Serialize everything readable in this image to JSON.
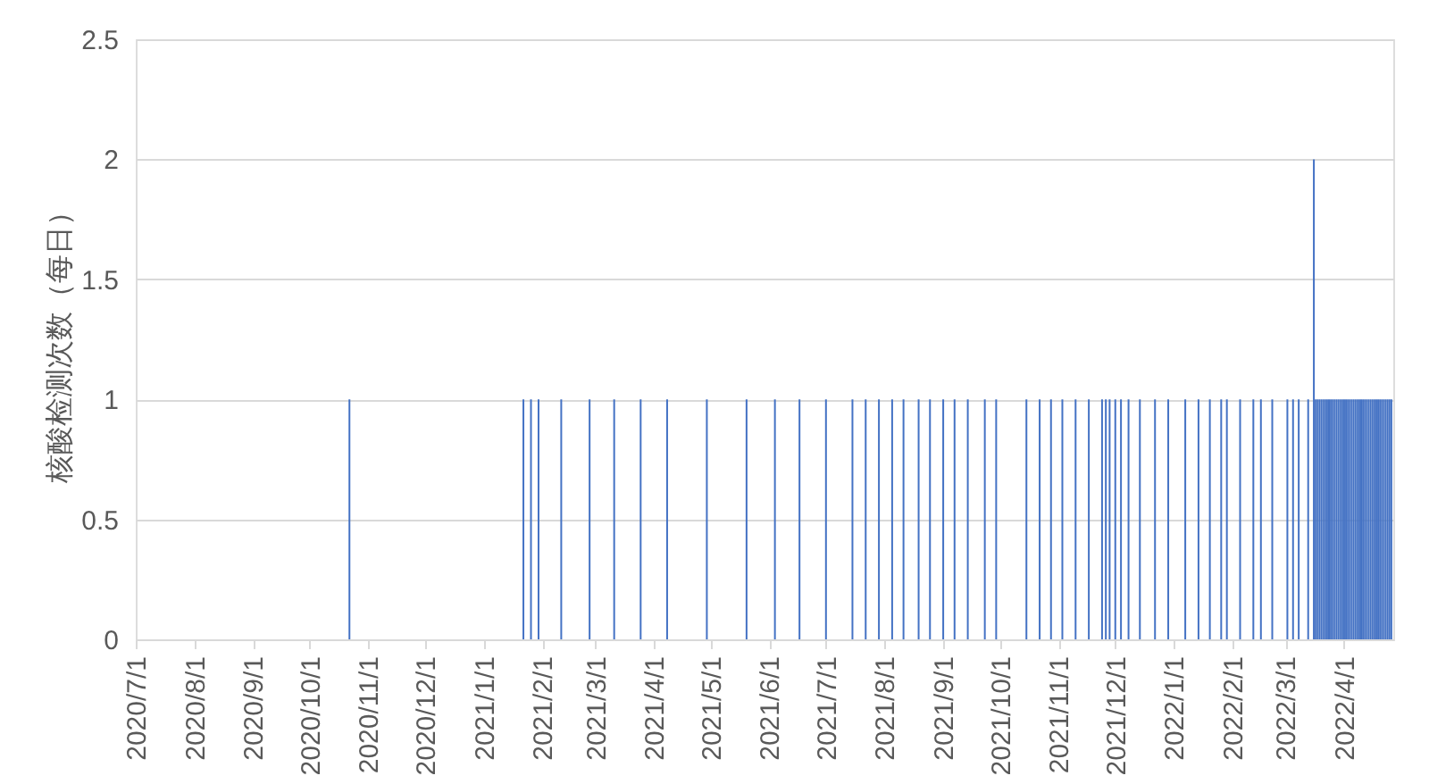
{
  "chart_data": {
    "type": "bar",
    "ylabel": "核酸检测次数（每日）",
    "x": [
      "2020-10-22",
      "2021-01-22",
      "2021-01-26",
      "2021-01-30",
      "2021-02-11",
      "2021-02-26",
      "2021-03-11",
      "2021-03-25",
      "2021-04-08",
      "2021-04-29",
      "2021-05-20",
      "2021-06-04",
      "2021-06-17",
      "2021-07-01",
      "2021-07-15",
      "2021-07-22",
      "2021-07-29",
      "2021-08-05",
      "2021-08-11",
      "2021-08-19",
      "2021-08-25",
      "2021-09-01",
      "2021-09-07",
      "2021-09-14",
      "2021-09-23",
      "2021-09-29",
      "2021-10-15",
      "2021-10-22",
      "2021-10-28",
      "2021-11-03",
      "2021-11-10",
      "2021-11-17",
      "2021-11-24",
      "2021-11-26",
      "2021-11-28",
      "2021-12-01",
      "2021-12-04",
      "2021-12-08",
      "2021-12-14",
      "2021-12-22",
      "2021-12-29",
      "2022-01-07",
      "2022-01-14",
      "2022-01-20",
      "2022-01-26",
      "2022-01-29",
      "2022-02-05",
      "2022-02-12",
      "2022-02-16",
      "2022-02-22",
      "2022-03-02",
      "2022-03-05",
      "2022-03-08",
      "2022-03-13",
      "2022-03-16",
      "2022-03-17",
      "2022-03-18",
      "2022-03-19",
      "2022-03-20",
      "2022-03-21",
      "2022-03-22",
      "2022-03-23",
      "2022-03-24",
      "2022-03-25",
      "2022-03-26",
      "2022-03-27",
      "2022-03-28",
      "2022-03-29",
      "2022-03-30",
      "2022-03-31",
      "2022-04-01",
      "2022-04-02",
      "2022-04-03",
      "2022-04-04",
      "2022-04-05",
      "2022-04-06",
      "2022-04-07",
      "2022-04-08",
      "2022-04-09",
      "2022-04-10",
      "2022-04-11",
      "2022-04-12",
      "2022-04-13",
      "2022-04-14",
      "2022-04-15",
      "2022-04-16",
      "2022-04-17",
      "2022-04-18",
      "2022-04-19",
      "2022-04-20",
      "2022-04-21",
      "2022-04-22",
      "2022-04-23",
      "2022-04-24",
      "2022-04-25",
      "2022-04-26"
    ],
    "values": [
      1,
      1,
      1,
      1,
      1,
      1,
      1,
      1,
      1,
      1,
      1,
      1,
      1,
      1,
      1,
      1,
      1,
      1,
      1,
      1,
      1,
      1,
      1,
      1,
      1,
      1,
      1,
      1,
      1,
      1,
      1,
      1,
      1,
      1,
      1,
      1,
      1,
      1,
      1,
      1,
      1,
      1,
      1,
      1,
      1,
      1,
      1,
      1,
      1,
      1,
      1,
      1,
      1,
      1,
      2,
      1,
      1,
      1,
      1,
      1,
      1,
      1,
      1,
      1,
      1,
      1,
      1,
      1,
      1,
      1,
      1,
      1,
      1,
      1,
      1,
      1,
      1,
      1,
      1,
      1,
      1,
      1,
      1,
      1,
      1,
      1,
      1,
      1,
      1,
      1,
      1,
      1,
      1,
      1,
      1,
      1
    ],
    "color": "#4472c4",
    "xlim": [
      "2020-07-01",
      "2022-04-27"
    ],
    "xticks": [
      {
        "value": "2020-07-01",
        "label": "2020/7/1"
      },
      {
        "value": "2020-08-01",
        "label": "2020/8/1"
      },
      {
        "value": "2020-09-01",
        "label": "2020/9/1"
      },
      {
        "value": "2020-10-01",
        "label": "2020/10/1"
      },
      {
        "value": "2020-11-01",
        "label": "2020/11/1"
      },
      {
        "value": "2020-12-01",
        "label": "2020/12/1"
      },
      {
        "value": "2021-01-01",
        "label": "2021/1/1"
      },
      {
        "value": "2021-02-01",
        "label": "2021/2/1"
      },
      {
        "value": "2021-03-01",
        "label": "2021/3/1"
      },
      {
        "value": "2021-04-01",
        "label": "2021/4/1"
      },
      {
        "value": "2021-05-01",
        "label": "2021/5/1"
      },
      {
        "value": "2021-06-01",
        "label": "2021/6/1"
      },
      {
        "value": "2021-07-01",
        "label": "2021/7/1"
      },
      {
        "value": "2021-08-01",
        "label": "2021/8/1"
      },
      {
        "value": "2021-09-01",
        "label": "2021/9/1"
      },
      {
        "value": "2021-10-01",
        "label": "2021/10/1"
      },
      {
        "value": "2021-11-01",
        "label": "2021/11/1"
      },
      {
        "value": "2021-12-01",
        "label": "2021/12/1"
      },
      {
        "value": "2022-01-01",
        "label": "2022/1/1"
      },
      {
        "value": "2022-02-01",
        "label": "2022/2/1"
      },
      {
        "value": "2022-03-01",
        "label": "2022/3/1"
      },
      {
        "value": "2022-04-01",
        "label": "2022/4/1"
      }
    ],
    "ylim": [
      0,
      2.5
    ],
    "yticks": [
      0,
      0.5,
      1,
      1.5,
      2,
      2.5
    ],
    "grid": "y",
    "legend": false
  }
}
